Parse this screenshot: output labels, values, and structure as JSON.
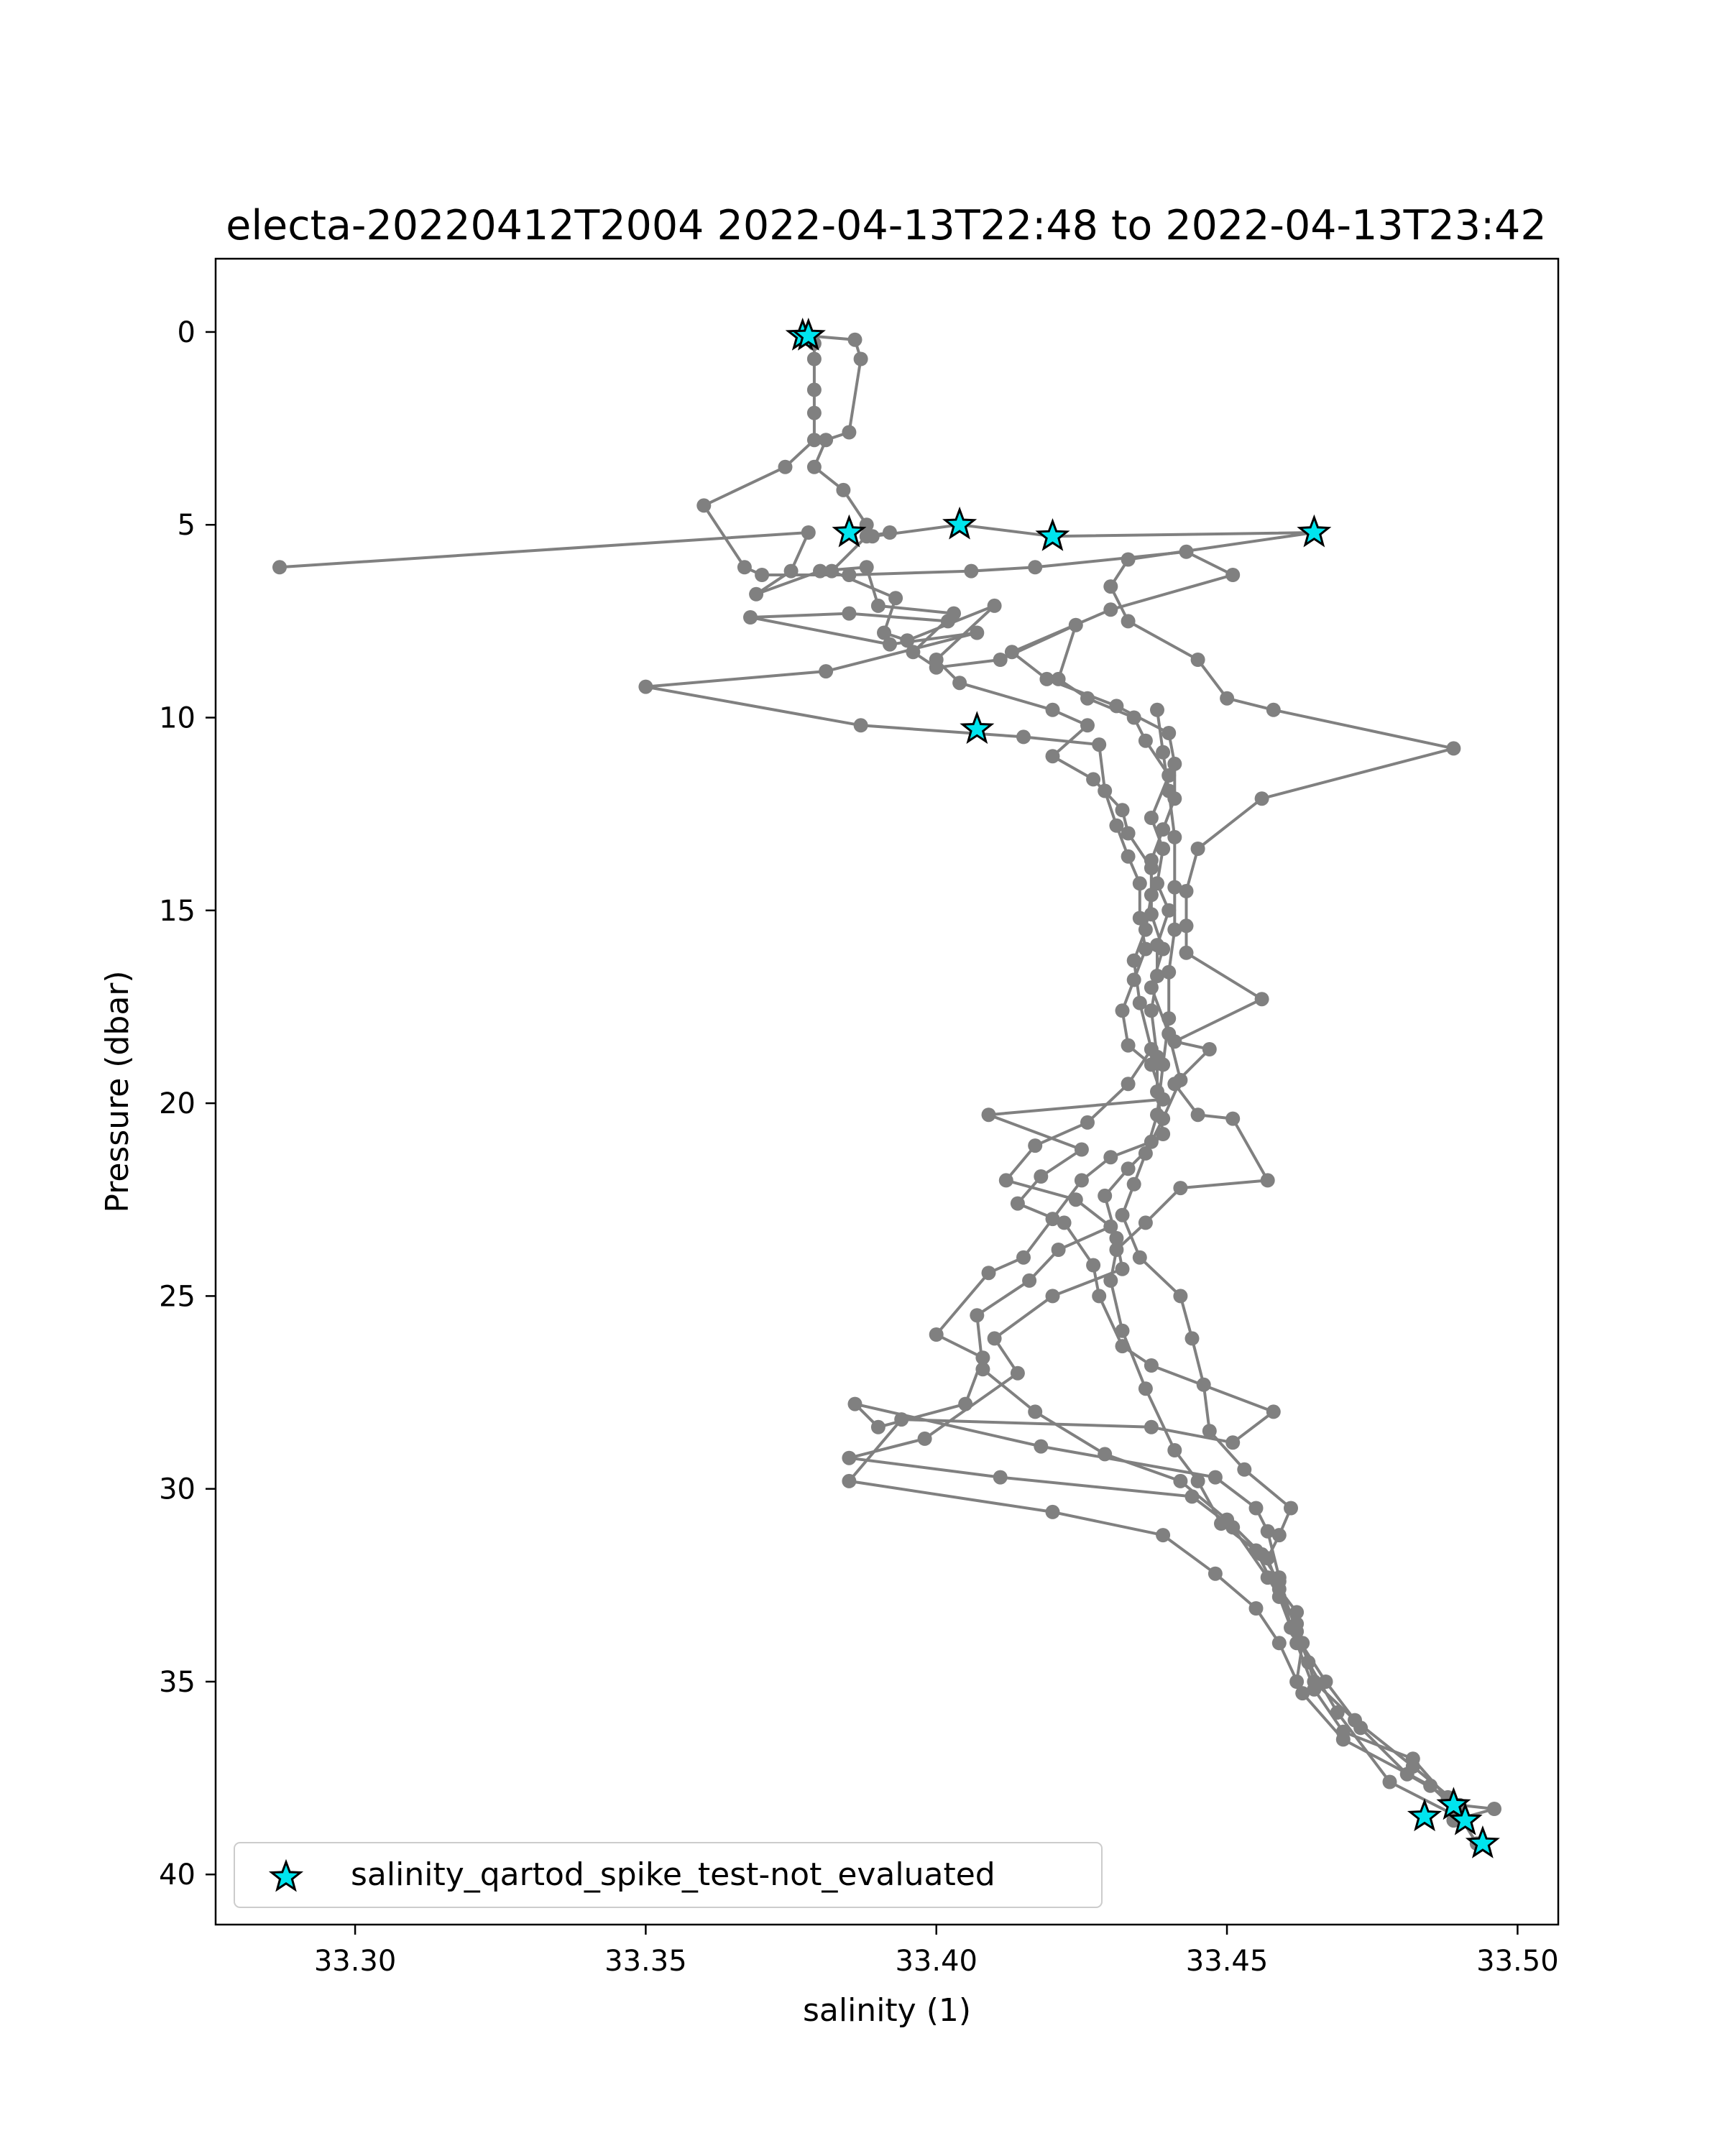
{
  "chart_data": {
    "type": "line",
    "title": "electa-20220412T2004 2022-04-13T22:48 to 2022-04-13T23:42",
    "xlabel": "salinity (1)",
    "ylabel": "Pressure (dbar)",
    "xlim": [
      33.276,
      33.507
    ],
    "ylim": [
      41.3,
      -1.9
    ],
    "y_inverted": true,
    "grid": false,
    "x_ticks": [
      "33.30",
      "33.35",
      "33.40",
      "33.45",
      "33.50"
    ],
    "y_ticks": [
      "0",
      "5",
      "10",
      "15",
      "20",
      "25",
      "30",
      "35",
      "40"
    ],
    "series": [
      {
        "kind": "line-markers",
        "color": "#808080",
        "points": [
          [
            33.378,
            0.1
          ],
          [
            33.386,
            0.2
          ],
          [
            33.387,
            0.7
          ],
          [
            33.385,
            2.6
          ],
          [
            33.381,
            2.8
          ],
          [
            33.379,
            3.5
          ],
          [
            33.384,
            4.1
          ],
          [
            33.388,
            5.0
          ],
          [
            33.389,
            5.3
          ],
          [
            33.404,
            5.0
          ],
          [
            33.42,
            5.3
          ],
          [
            33.465,
            5.2
          ],
          [
            33.433,
            5.9
          ],
          [
            33.43,
            6.6
          ],
          [
            33.433,
            7.5
          ],
          [
            33.445,
            8.5
          ],
          [
            33.45,
            9.5
          ],
          [
            33.458,
            9.8
          ],
          [
            33.489,
            10.8
          ],
          [
            33.456,
            12.1
          ],
          [
            33.445,
            13.4
          ],
          [
            33.443,
            14.5
          ],
          [
            33.443,
            15.4
          ],
          [
            33.443,
            16.1
          ],
          [
            33.456,
            17.3
          ],
          [
            33.441,
            18.4
          ],
          [
            33.447,
            18.6
          ],
          [
            33.441,
            19.5
          ],
          [
            33.445,
            20.3
          ],
          [
            33.451,
            20.4
          ],
          [
            33.457,
            22.0
          ],
          [
            33.442,
            22.2
          ],
          [
            33.436,
            23.1
          ],
          [
            33.431,
            23.8
          ],
          [
            33.43,
            24.6
          ],
          [
            33.432,
            25.9
          ],
          [
            33.436,
            27.4
          ],
          [
            33.441,
            29.0
          ],
          [
            33.445,
            29.8
          ],
          [
            33.449,
            30.9
          ],
          [
            33.455,
            31.6
          ],
          [
            33.459,
            32.8
          ],
          [
            33.462,
            34.0
          ],
          [
            33.465,
            35.2
          ],
          [
            33.47,
            36.3
          ],
          [
            33.482,
            37.0
          ],
          [
            33.489,
            38.2
          ]
        ]
      },
      {
        "kind": "line-markers",
        "color": "#808080",
        "points": [
          [
            33.379,
            0.3
          ],
          [
            33.379,
            0.7
          ],
          [
            33.379,
            1.5
          ],
          [
            33.379,
            2.1
          ],
          [
            33.379,
            2.8
          ],
          [
            33.374,
            3.5
          ],
          [
            33.36,
            4.5
          ],
          [
            33.367,
            6.1
          ],
          [
            33.37,
            6.3
          ],
          [
            33.385,
            6.3
          ],
          [
            33.406,
            6.2
          ],
          [
            33.417,
            6.1
          ],
          [
            33.443,
            5.7
          ],
          [
            33.451,
            6.3
          ],
          [
            33.43,
            7.2
          ],
          [
            33.413,
            8.3
          ],
          [
            33.419,
            9.0
          ],
          [
            33.431,
            9.7
          ],
          [
            33.44,
            10.4
          ],
          [
            33.441,
            11.2
          ],
          [
            33.441,
            12.1
          ],
          [
            33.439,
            12.9
          ],
          [
            33.437,
            13.7
          ],
          [
            33.437,
            14.6
          ],
          [
            33.436,
            15.5
          ],
          [
            33.434,
            16.3
          ],
          [
            33.435,
            17.4
          ],
          [
            33.437,
            18.6
          ],
          [
            33.433,
            19.5
          ],
          [
            33.426,
            20.5
          ],
          [
            33.417,
            21.1
          ],
          [
            33.412,
            22.0
          ],
          [
            33.424,
            22.5
          ],
          [
            33.43,
            23.2
          ],
          [
            33.421,
            23.8
          ],
          [
            33.416,
            24.6
          ],
          [
            33.407,
            25.5
          ],
          [
            33.408,
            26.9
          ],
          [
            33.417,
            28.0
          ],
          [
            33.429,
            29.1
          ],
          [
            33.442,
            29.8
          ],
          [
            33.45,
            30.8
          ],
          [
            33.456,
            31.7
          ],
          [
            33.459,
            32.4
          ],
          [
            33.462,
            33.7
          ],
          [
            33.464,
            34.5
          ],
          [
            33.469,
            35.8
          ],
          [
            33.478,
            37.6
          ],
          [
            33.491,
            38.6
          ]
        ]
      },
      {
        "kind": "line-markers",
        "color": "#808080",
        "points": [
          [
            33.392,
            5.2
          ],
          [
            33.388,
            5.3
          ],
          [
            33.382,
            6.2
          ],
          [
            33.393,
            6.9
          ],
          [
            33.391,
            7.8
          ],
          [
            33.395,
            8.0
          ],
          [
            33.41,
            7.1
          ],
          [
            33.4,
            8.5
          ],
          [
            33.404,
            9.1
          ],
          [
            33.42,
            9.8
          ],
          [
            33.426,
            10.2
          ],
          [
            33.42,
            11.0
          ],
          [
            33.427,
            11.6
          ],
          [
            33.432,
            12.4
          ],
          [
            33.433,
            13.0
          ],
          [
            33.437,
            13.9
          ],
          [
            33.437,
            15.1
          ],
          [
            33.439,
            16.0
          ],
          [
            33.437,
            17.0
          ],
          [
            33.44,
            18.2
          ],
          [
            33.442,
            19.4
          ],
          [
            33.439,
            20.4
          ],
          [
            33.437,
            21.0
          ],
          [
            33.43,
            21.4
          ],
          [
            33.425,
            22.0
          ],
          [
            33.42,
            23.0
          ],
          [
            33.415,
            24.0
          ],
          [
            33.409,
            24.4
          ],
          [
            33.4,
            26.0
          ],
          [
            33.408,
            26.6
          ],
          [
            33.405,
            27.8
          ],
          [
            33.39,
            28.4
          ],
          [
            33.386,
            27.8
          ],
          [
            33.418,
            28.9
          ],
          [
            33.448,
            29.7
          ],
          [
            33.455,
            30.5
          ],
          [
            33.457,
            31.1
          ],
          [
            33.459,
            32.3
          ],
          [
            33.461,
            33.6
          ],
          [
            33.467,
            35.0
          ],
          [
            33.473,
            36.2
          ],
          [
            33.481,
            37.4
          ],
          [
            33.488,
            38.0
          ],
          [
            33.493,
            39.2
          ]
        ]
      },
      {
        "kind": "line-markers",
        "color": "#808080",
        "points": [
          [
            33.287,
            6.1
          ],
          [
            33.378,
            5.2
          ],
          [
            33.375,
            6.2
          ],
          [
            33.369,
            6.8
          ],
          [
            33.38,
            6.2
          ],
          [
            33.388,
            6.1
          ],
          [
            33.39,
            7.1
          ],
          [
            33.403,
            7.3
          ],
          [
            33.396,
            8.3
          ],
          [
            33.4,
            8.7
          ],
          [
            33.411,
            8.5
          ],
          [
            33.424,
            7.6
          ],
          [
            33.421,
            9.0
          ],
          [
            33.426,
            9.5
          ],
          [
            33.434,
            10.0
          ],
          [
            33.436,
            10.6
          ],
          [
            33.44,
            11.5
          ],
          [
            33.437,
            12.6
          ],
          [
            33.439,
            13.4
          ],
          [
            33.438,
            14.3
          ],
          [
            33.44,
            15.0
          ],
          [
            33.438,
            15.9
          ],
          [
            33.438,
            16.7
          ],
          [
            33.437,
            17.6
          ],
          [
            33.438,
            18.8
          ],
          [
            33.438,
            19.7
          ],
          [
            33.439,
            20.8
          ],
          [
            33.433,
            21.7
          ],
          [
            33.429,
            22.4
          ],
          [
            33.431,
            23.5
          ],
          [
            33.432,
            24.3
          ],
          [
            33.42,
            25.0
          ],
          [
            33.41,
            26.1
          ],
          [
            33.414,
            27.0
          ],
          [
            33.398,
            28.7
          ],
          [
            33.385,
            29.2
          ],
          [
            33.411,
            29.7
          ],
          [
            33.444,
            30.2
          ],
          [
            33.451,
            31.0
          ],
          [
            33.457,
            32.3
          ],
          [
            33.462,
            33.5
          ],
          [
            33.465,
            35.0
          ],
          [
            33.472,
            36.0
          ],
          [
            33.482,
            37.2
          ],
          [
            33.49,
            38.2
          ],
          [
            33.496,
            38.3
          ],
          [
            33.489,
            38.6
          ]
        ]
      },
      {
        "kind": "line-markers",
        "color": "#808080",
        "points": [
          [
            33.402,
            7.5
          ],
          [
            33.385,
            7.3
          ],
          [
            33.368,
            7.4
          ],
          [
            33.392,
            8.1
          ],
          [
            33.407,
            7.8
          ],
          [
            33.381,
            8.8
          ],
          [
            33.35,
            9.2
          ],
          [
            33.387,
            10.2
          ],
          [
            33.415,
            10.5
          ],
          [
            33.428,
            10.7
          ],
          [
            33.429,
            11.9
          ],
          [
            33.431,
            12.8
          ],
          [
            33.433,
            13.6
          ],
          [
            33.435,
            14.3
          ],
          [
            33.435,
            15.2
          ],
          [
            33.436,
            16.0
          ],
          [
            33.434,
            16.8
          ],
          [
            33.432,
            17.6
          ],
          [
            33.433,
            18.5
          ],
          [
            33.437,
            19.0
          ],
          [
            33.439,
            19.9
          ],
          [
            33.409,
            20.3
          ],
          [
            33.425,
            21.2
          ],
          [
            33.418,
            21.9
          ],
          [
            33.414,
            22.6
          ],
          [
            33.422,
            23.1
          ],
          [
            33.427,
            24.2
          ],
          [
            33.428,
            25.0
          ],
          [
            33.432,
            26.3
          ],
          [
            33.437,
            26.8
          ],
          [
            33.458,
            28.0
          ],
          [
            33.451,
            28.8
          ],
          [
            33.437,
            28.4
          ],
          [
            33.394,
            28.2
          ],
          [
            33.385,
            29.8
          ],
          [
            33.42,
            30.6
          ],
          [
            33.439,
            31.2
          ],
          [
            33.448,
            32.2
          ],
          [
            33.455,
            33.1
          ],
          [
            33.459,
            34.0
          ],
          [
            33.463,
            35.3
          ],
          [
            33.47,
            36.5
          ],
          [
            33.485,
            37.7
          ],
          [
            33.49,
            38.4
          ]
        ]
      },
      {
        "kind": "line-markers",
        "color": "#808080",
        "points": [
          [
            33.462,
            35.0
          ],
          [
            33.463,
            34.0
          ],
          [
            33.462,
            33.2
          ],
          [
            33.459,
            32.6
          ],
          [
            33.457,
            31.8
          ],
          [
            33.459,
            31.2
          ],
          [
            33.461,
            30.5
          ],
          [
            33.453,
            29.5
          ],
          [
            33.447,
            28.5
          ],
          [
            33.446,
            27.3
          ],
          [
            33.444,
            26.1
          ],
          [
            33.442,
            25.0
          ],
          [
            33.435,
            24.0
          ],
          [
            33.432,
            22.9
          ],
          [
            33.434,
            22.1
          ],
          [
            33.436,
            21.3
          ],
          [
            33.438,
            20.3
          ],
          [
            33.439,
            19.0
          ],
          [
            33.44,
            17.8
          ],
          [
            33.44,
            16.6
          ],
          [
            33.441,
            15.5
          ],
          [
            33.441,
            14.4
          ],
          [
            33.441,
            13.1
          ],
          [
            33.44,
            11.9
          ],
          [
            33.439,
            10.9
          ],
          [
            33.438,
            9.8
          ]
        ]
      }
    ],
    "flagged": {
      "name": "salinity_qartod_spike_test-not_evaluated",
      "marker": "star",
      "color": "#00e5ee",
      "edge_color": "#000000",
      "points": [
        [
          33.377,
          0.1
        ],
        [
          33.378,
          0.1
        ],
        [
          33.385,
          5.2
        ],
        [
          33.404,
          5.0
        ],
        [
          33.42,
          5.3
        ],
        [
          33.465,
          5.2
        ],
        [
          33.407,
          10.3
        ],
        [
          33.489,
          38.2
        ],
        [
          33.491,
          38.6
        ],
        [
          33.484,
          38.5
        ],
        [
          33.494,
          39.2
        ]
      ]
    },
    "legend": {
      "position": "lower-left"
    }
  }
}
